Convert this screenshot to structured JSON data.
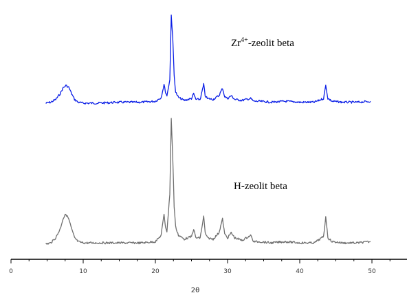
{
  "chart_data": {
    "type": "line",
    "title": "",
    "xlabel": "2θ",
    "ylabel": "",
    "xlim": [
      0,
      55
    ],
    "x_ticks": [
      0,
      10,
      20,
      30,
      40,
      50
    ],
    "x_tick_labels": [
      "0",
      "10",
      "20",
      "30",
      "40",
      "50"
    ],
    "grid": false,
    "legend": "inline labels",
    "series": [
      {
        "name_label": "Zr4+-zeolit beta",
        "name_prefix": "Zr",
        "name_sup": "4+",
        "name_suffix": "-zeolit beta",
        "color": "#0a1ee6",
        "x": [
          4.8,
          5.5,
          6.2,
          6.8,
          7.2,
          7.6,
          8.0,
          8.4,
          8.8,
          9.3,
          10.0,
          12.0,
          15.0,
          18.0,
          20.0,
          20.8,
          21.2,
          21.4,
          21.6,
          22.0,
          22.2,
          22.4,
          22.6,
          22.8,
          23.2,
          24.0,
          25.0,
          25.3,
          25.6,
          26.2,
          26.7,
          26.9,
          27.2,
          28.0,
          28.8,
          29.3,
          29.6,
          30.0,
          30.5,
          31.0,
          32.0,
          33.2,
          33.6,
          34.5,
          36.0,
          38.0,
          40.0,
          42.0,
          43.3,
          43.6,
          43.9,
          44.5,
          46.0,
          48.0,
          49.8
        ],
        "y": [
          0.0,
          0.01,
          0.04,
          0.1,
          0.16,
          0.19,
          0.17,
          0.1,
          0.04,
          0.01,
          0.0,
          0.0,
          0.01,
          0.01,
          0.02,
          0.06,
          0.2,
          0.12,
          0.08,
          0.25,
          0.95,
          0.7,
          0.3,
          0.12,
          0.06,
          0.03,
          0.05,
          0.1,
          0.04,
          0.04,
          0.2,
          0.08,
          0.05,
          0.04,
          0.08,
          0.16,
          0.07,
          0.05,
          0.08,
          0.04,
          0.03,
          0.05,
          0.02,
          0.02,
          0.01,
          0.02,
          0.01,
          0.01,
          0.05,
          0.19,
          0.05,
          0.02,
          0.01,
          0.01,
          0.02
        ]
      },
      {
        "name_label": "H-zeolit beta",
        "color": "#6e6e6e",
        "x": [
          4.8,
          5.5,
          6.2,
          6.8,
          7.2,
          7.6,
          8.0,
          8.4,
          8.8,
          9.3,
          10.0,
          12.0,
          15.0,
          18.0,
          20.0,
          20.8,
          21.2,
          21.4,
          21.6,
          22.0,
          22.2,
          22.4,
          22.6,
          22.8,
          23.2,
          24.0,
          25.0,
          25.3,
          25.6,
          26.2,
          26.7,
          26.9,
          27.2,
          28.0,
          28.8,
          29.3,
          29.6,
          30.0,
          30.5,
          31.0,
          32.0,
          33.2,
          33.6,
          34.5,
          36.0,
          38.0,
          40.0,
          42.0,
          43.3,
          43.6,
          43.9,
          44.5,
          46.0,
          48.0,
          49.8
        ],
        "y": [
          0.0,
          0.01,
          0.05,
          0.12,
          0.2,
          0.24,
          0.2,
          0.12,
          0.05,
          0.02,
          0.01,
          0.01,
          0.01,
          0.01,
          0.02,
          0.07,
          0.24,
          0.14,
          0.1,
          0.4,
          1.0,
          0.7,
          0.3,
          0.14,
          0.07,
          0.04,
          0.06,
          0.12,
          0.05,
          0.05,
          0.22,
          0.09,
          0.05,
          0.04,
          0.09,
          0.2,
          0.08,
          0.05,
          0.09,
          0.05,
          0.03,
          0.07,
          0.02,
          0.02,
          0.01,
          0.02,
          0.01,
          0.01,
          0.06,
          0.22,
          0.05,
          0.02,
          0.01,
          0.01,
          0.02
        ]
      }
    ]
  }
}
